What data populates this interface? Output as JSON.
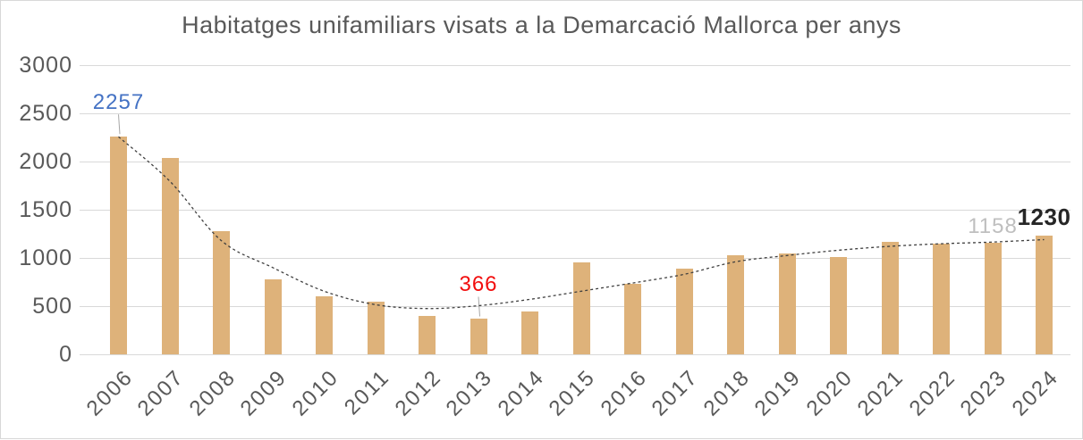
{
  "chart_data": {
    "type": "bar",
    "title": "Habitatges unifamiliars visats a la Demarcació Mallorca per anys",
    "categories": [
      "2006",
      "2007",
      "2008",
      "2009",
      "2010",
      "2011",
      "2012",
      "2013",
      "2014",
      "2015",
      "2016",
      "2017",
      "2018",
      "2019",
      "2020",
      "2021",
      "2022",
      "2023",
      "2024"
    ],
    "values": [
      2257,
      2040,
      1280,
      775,
      600,
      545,
      400,
      366,
      445,
      950,
      730,
      885,
      1030,
      1050,
      1010,
      1170,
      1145,
      1158,
      1230
    ],
    "ylabel": "",
    "xlabel": "",
    "ylim": [
      0,
      3000
    ],
    "yticks": [
      0,
      500,
      1000,
      1500,
      2000,
      2500,
      3000
    ],
    "grid": true,
    "legend": false,
    "bar_color": "#deb27a",
    "grid_color": "#d9d9d9",
    "axis_text_color": "#595959",
    "trendline": {
      "style": "dashed",
      "color": "#404040",
      "values": [
        2257,
        1795,
        1180,
        900,
        655,
        515,
        475,
        505,
        570,
        655,
        740,
        830,
        960,
        1025,
        1080,
        1120,
        1147,
        1165,
        1190
      ]
    },
    "annotations": [
      {
        "label": "2257",
        "category": "2006",
        "color": "#4472c4",
        "bold": false,
        "leader_line": true
      },
      {
        "label": "366",
        "category": "2013",
        "color": "#f20d0d",
        "bold": false,
        "leader_line": true
      },
      {
        "label": "1158",
        "category": "2023",
        "color": "#bfbfbf",
        "bold": false,
        "leader_line": false
      },
      {
        "label": "1230",
        "category": "2024",
        "color": "#262626",
        "bold": true,
        "leader_line": false
      }
    ]
  }
}
